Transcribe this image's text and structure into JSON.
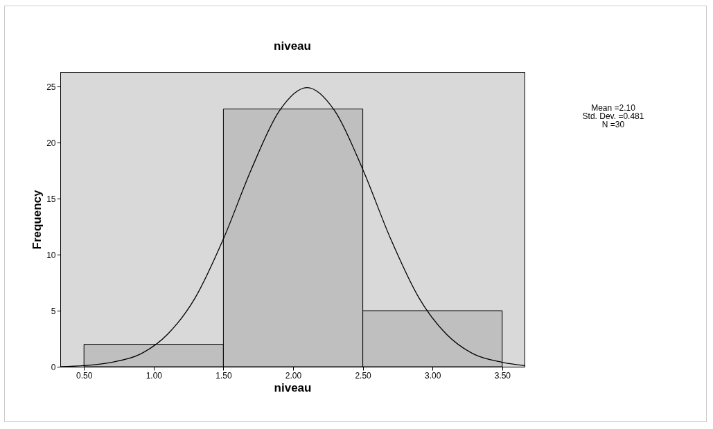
{
  "chart_data": {
    "type": "histogram",
    "title": "niveau",
    "xlabel": "niveau",
    "ylabel": "Frequency",
    "bins": [
      0.5,
      1.5,
      2.5,
      3.5
    ],
    "values": [
      2,
      23,
      5
    ],
    "color": "#bfbfbf",
    "series": [
      {
        "type": "line",
        "color": "#000000",
        "x": [
          0.33,
          0.5,
          0.7,
          0.9,
          1.1,
          1.3,
          1.5,
          1.7,
          1.9,
          2.1,
          2.3,
          2.5,
          2.7,
          2.9,
          3.1,
          3.3,
          3.5,
          3.66
        ],
        "values": [
          0.0,
          0.1,
          0.4,
          1.1,
          2.9,
          6.2,
          11.4,
          17.6,
          22.8,
          24.9,
          22.8,
          17.6,
          11.4,
          6.2,
          2.9,
          1.1,
          0.4,
          0.1
        ]
      }
    ],
    "xlim": [
      0.33,
      3.66
    ],
    "ylim": [
      0,
      26.3
    ],
    "xticks": [
      {
        "value": 0.5,
        "label": "0.50"
      },
      {
        "value": 1,
        "label": "1.00"
      },
      {
        "value": 1.5,
        "label": "1.50"
      },
      {
        "value": 2,
        "label": "2.00"
      },
      {
        "value": 2.5,
        "label": "2.50"
      },
      {
        "value": 3,
        "label": "3.00"
      },
      {
        "value": 3.5,
        "label": "3.50"
      }
    ],
    "yticks": [
      0,
      5,
      10,
      15,
      20,
      25
    ],
    "grid": false,
    "annotations": [
      "Mean =2.10",
      "Std. Dev. =0.481",
      "N =30"
    ]
  }
}
